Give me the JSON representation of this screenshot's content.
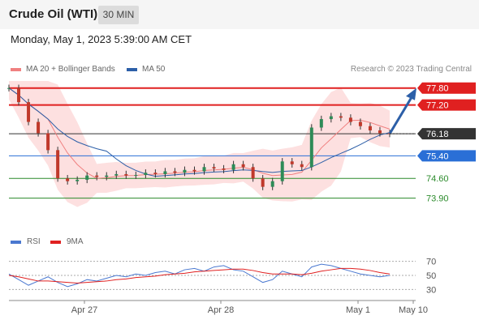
{
  "header": {
    "title": "Crude Oil (WTI)",
    "timeframe": "30 MIN"
  },
  "datetime": "Monday, May 1, 2023 5:39:00 AM CET",
  "legend": {
    "ma20_label": "MA 20 + Bollinger Bands",
    "ma50_label": "MA 50",
    "ma20_color": "#f08080",
    "ma50_color": "#2c5fa8"
  },
  "credit": "Research © 2023 Trading Central",
  "rsi_legend": {
    "rsi_label": "RSI",
    "ma_label": "9MA",
    "rsi_color": "#4a78d0",
    "ma_color": "#e02020"
  },
  "chart_data": [
    {
      "type": "candlestick",
      "title": "Crude Oil (WTI)",
      "ylim": [
        73.4,
        78.05
      ],
      "x_labels": [
        "Apr 27",
        "Apr 28",
        "May 1",
        "May 10"
      ],
      "levels": [
        {
          "value": 77.8,
          "label": "77.80",
          "color": "#e02020",
          "style": "box"
        },
        {
          "value": 77.2,
          "label": "77.20",
          "color": "#e02020",
          "style": "box"
        },
        {
          "value": 76.18,
          "label": "76.18",
          "color": "#333333",
          "style": "box"
        },
        {
          "value": 75.4,
          "label": "75.40",
          "color": "#2a6fd6",
          "style": "box"
        },
        {
          "value": 74.6,
          "label": "74.60",
          "color": "#2a8a2a",
          "style": "text"
        },
        {
          "value": 73.9,
          "label": "73.90",
          "color": "#2a8a2a",
          "style": "text"
        }
      ],
      "close_path": [
        77.8,
        77.3,
        76.6,
        76.2,
        75.6,
        74.6,
        74.5,
        74.55,
        74.7,
        74.65,
        74.7,
        74.75,
        74.7,
        74.72,
        74.8,
        74.75,
        74.85,
        74.8,
        74.9,
        74.85,
        75.0,
        74.95,
        74.9,
        75.1,
        75.0,
        74.6,
        74.3,
        74.5,
        75.2,
        75.1,
        75.0,
        76.4,
        76.7,
        76.8,
        76.75,
        76.6,
        76.45,
        76.3,
        76.2,
        76.18
      ],
      "projection": {
        "from": 76.18,
        "to": 77.8
      }
    },
    {
      "type": "line",
      "title": "RSI",
      "ylim": [
        20,
        80
      ],
      "yticks": [
        70,
        50,
        30
      ],
      "series": [
        {
          "name": "RSI",
          "values": [
            52,
            44,
            36,
            42,
            48,
            40,
            34,
            38,
            44,
            42,
            46,
            50,
            48,
            52,
            50,
            54,
            56,
            52,
            58,
            60,
            56,
            62,
            64,
            58,
            56,
            48,
            40,
            44,
            56,
            52,
            48,
            62,
            66,
            64,
            60,
            56,
            52,
            50,
            48,
            50
          ]
        },
        {
          "name": "9MA",
          "values": [
            50,
            48,
            45,
            42,
            42,
            41,
            40,
            39,
            40,
            41,
            42,
            44,
            45,
            47,
            48,
            49,
            51,
            52,
            53,
            55,
            56,
            57,
            58,
            59,
            59,
            57,
            54,
            52,
            52,
            52,
            51,
            53,
            56,
            58,
            60,
            60,
            59,
            57,
            54,
            52
          ]
        }
      ]
    }
  ]
}
